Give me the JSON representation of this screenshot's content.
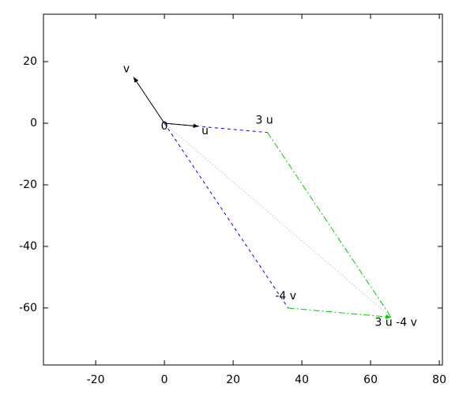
{
  "chart_data": {
    "type": "vector",
    "origin": {
      "label": "0",
      "x": 0,
      "y": 0
    },
    "vectors": [
      {
        "name": "u",
        "x": 10,
        "y": -1,
        "color": "#000000"
      },
      {
        "name": "v",
        "x": -9,
        "y": 15,
        "color": "#000000"
      },
      {
        "name": "3 u",
        "x": 30,
        "y": -3,
        "color": "#0000ff"
      },
      {
        "name": "-4 v",
        "x": 36,
        "y": -60,
        "color": "#0000ff"
      },
      {
        "name": "3 u -4 v",
        "x": 66,
        "y": -63,
        "color": "#00cc00"
      }
    ],
    "diagonal_color": "#aaaaaa",
    "xlim": [
      -35.2,
      80.9
    ],
    "xticks": [
      -20,
      0,
      20,
      40,
      60,
      80
    ],
    "ylim": [
      -78.5,
      35.4
    ],
    "yticks": [
      -60,
      -40,
      -20,
      0,
      20
    ]
  }
}
